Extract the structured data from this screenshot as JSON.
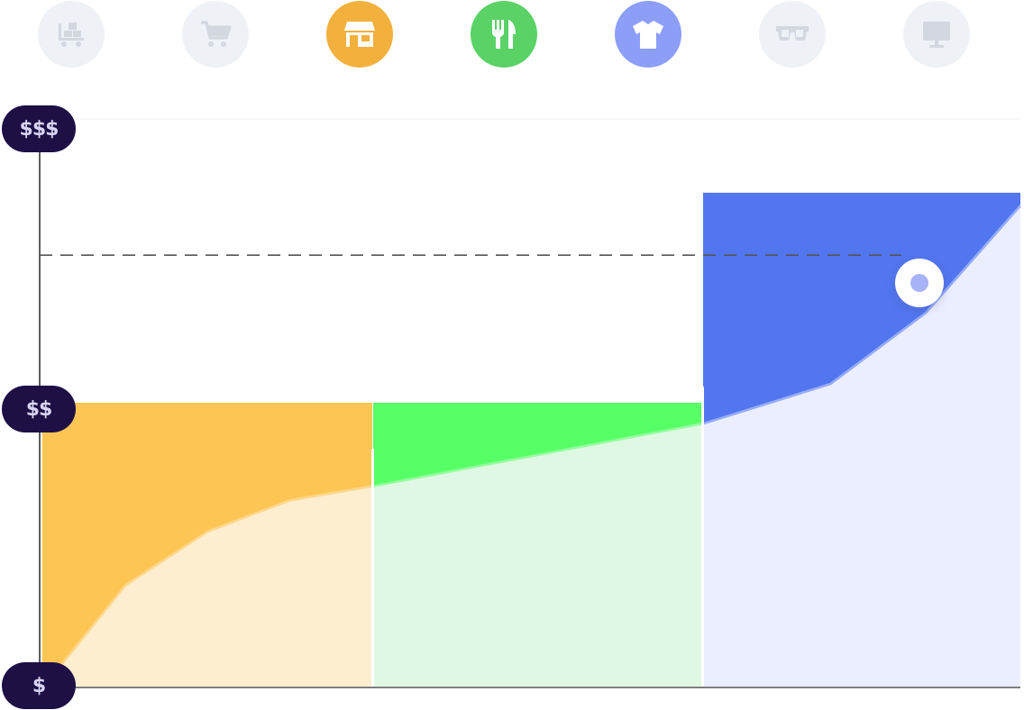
{
  "categories": [
    {
      "name": "wholesale-icon",
      "color": "#eef1f6",
      "glyph_color": "#d3d8e0",
      "active": false
    },
    {
      "name": "cart-icon",
      "color": "#eef1f6",
      "glyph_color": "#d3d8e0",
      "active": false
    },
    {
      "name": "store-icon",
      "color": "#f2b03c",
      "glyph_color": "#ffffff",
      "active": true
    },
    {
      "name": "fork-knife-icon",
      "color": "#5ad266",
      "glyph_color": "#ffffff",
      "active": true
    },
    {
      "name": "tshirt-icon",
      "color": "#8c9ef7",
      "glyph_color": "#ffffff",
      "active": true
    },
    {
      "name": "glasses-icon",
      "color": "#eef1f6",
      "glyph_color": "#d3d8e0",
      "active": false
    },
    {
      "name": "monitor-icon",
      "color": "#eef1f6",
      "glyph_color": "#d3d8e0",
      "active": false
    }
  ],
  "price_levels": {
    "high": "$$$",
    "mid": "$$",
    "low": "$"
  },
  "chart_data": {
    "type": "area",
    "y_levels": [
      "$",
      "$$",
      "$$$"
    ],
    "ylim": [
      0,
      2
    ],
    "segments": [
      {
        "category": "store",
        "x": [
          0,
          1
        ],
        "curve": [
          [
            0,
            0.0
          ],
          [
            0.25,
            0.36
          ],
          [
            0.5,
            0.55
          ],
          [
            0.75,
            0.66
          ],
          [
            1,
            0.71
          ]
        ],
        "cap": 1.0,
        "fill_color": "#fdc553",
        "curve_color": "#fdeed0"
      },
      {
        "category": "food",
        "x": [
          1,
          2
        ],
        "curve": [
          [
            0,
            0.71
          ],
          [
            1,
            0.93
          ]
        ],
        "cap": 1.0,
        "fill_color": "#57ff66",
        "curve_color": "#dff8e4"
      },
      {
        "category": "apparel",
        "x": [
          2,
          3
        ],
        "curve": [
          [
            0,
            0.93
          ],
          [
            0.4,
            1.07
          ],
          [
            0.7,
            1.32
          ],
          [
            1,
            1.7
          ]
        ],
        "cap": 1.74,
        "fill_color": "#5276f0",
        "curve_color": "#ebeefe"
      }
    ],
    "selected_level": 1.52
  }
}
